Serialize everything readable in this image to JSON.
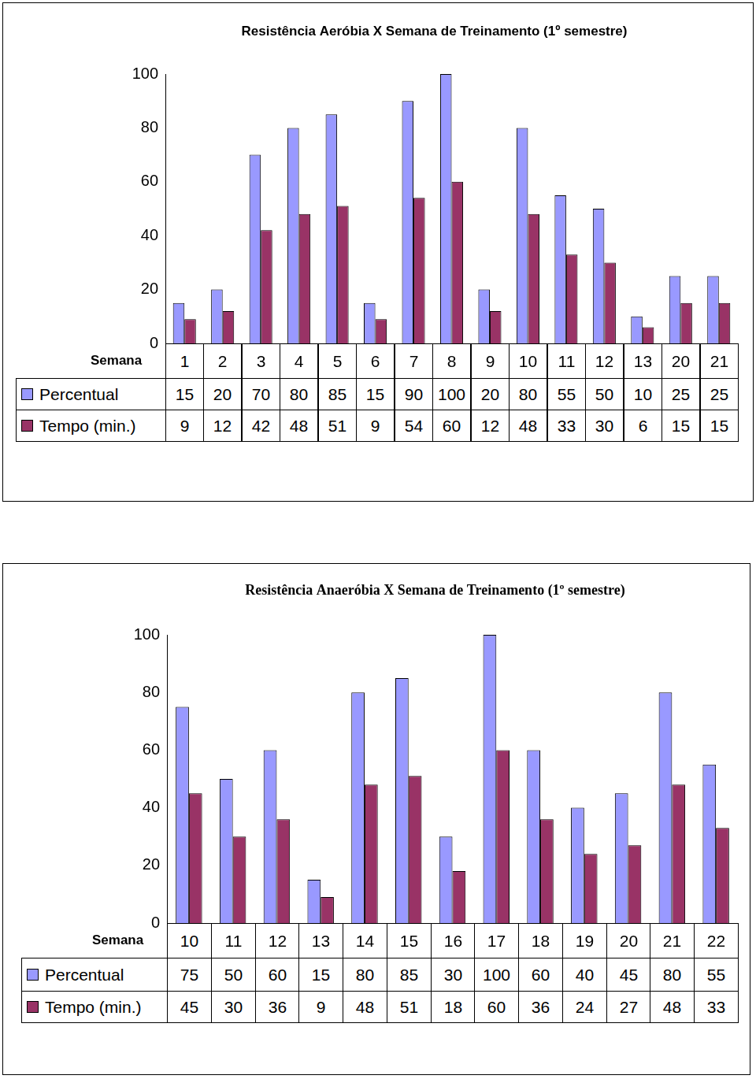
{
  "chart_data": [
    {
      "type": "bar",
      "title": "Resistência Aeróbia X Semana de Treinamento (1º semestre)",
      "x_label": "Semana",
      "categories": [
        "1",
        "2",
        "3",
        "4",
        "5",
        "6",
        "7",
        "8",
        "9",
        "10",
        "11",
        "12",
        "13",
        "20",
        "21"
      ],
      "series": [
        {
          "name": "Percentual",
          "color": "#9999ff",
          "values": [
            15,
            20,
            70,
            80,
            85,
            15,
            90,
            100,
            20,
            80,
            55,
            50,
            10,
            25,
            25
          ]
        },
        {
          "name": "Tempo (min.)",
          "color": "#993366",
          "values": [
            9,
            12,
            42,
            48,
            51,
            9,
            54,
            60,
            12,
            48,
            33,
            30,
            6,
            15,
            15
          ]
        }
      ],
      "ylim": [
        0,
        100
      ],
      "yticks": [
        0,
        20,
        40,
        60,
        80,
        100
      ],
      "grid": false
    },
    {
      "type": "bar",
      "title": "Resistência Anaeróbia X Semana de Treinamento (1º semestre)",
      "x_label": "Semana",
      "categories": [
        "10",
        "11",
        "12",
        "13",
        "14",
        "15",
        "16",
        "17",
        "18",
        "19",
        "20",
        "21",
        "22"
      ],
      "series": [
        {
          "name": "Percentual",
          "color": "#9999ff",
          "values": [
            75,
            50,
            60,
            15,
            80,
            85,
            30,
            100,
            60,
            40,
            45,
            80,
            55
          ]
        },
        {
          "name": "Tempo (min.)",
          "color": "#993366",
          "values": [
            45,
            30,
            36,
            9,
            48,
            51,
            18,
            60,
            36,
            24,
            27,
            48,
            33
          ]
        }
      ],
      "ylim": [
        0,
        100
      ],
      "yticks": [
        0,
        20,
        40,
        60,
        80,
        100
      ],
      "grid": false
    }
  ]
}
